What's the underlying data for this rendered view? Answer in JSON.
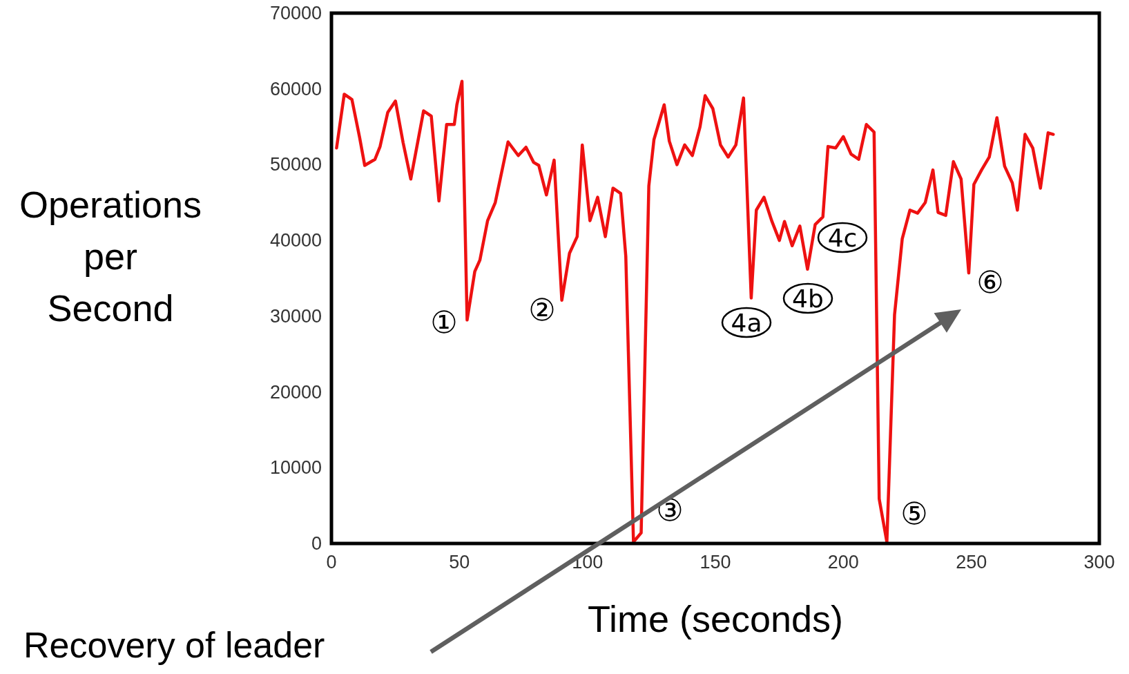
{
  "chart_data": {
    "type": "line",
    "xlabel": "Time (seconds)",
    "ylabel": "Operations per Second",
    "xlim": [
      0,
      300
    ],
    "xticks": [
      0,
      50,
      100,
      150,
      200,
      250,
      300
    ],
    "ylim": [
      0,
      70000
    ],
    "yticks": [
      0,
      10000,
      20000,
      30000,
      40000,
      50000,
      60000,
      70000
    ],
    "series": [
      {
        "color": "#ee1111",
        "x": [
          2,
          5,
          8,
          11,
          13,
          17,
          19,
          22,
          25,
          28,
          31,
          33,
          36,
          39,
          42,
          45,
          48,
          49,
          51,
          53,
          56,
          58,
          61,
          64,
          67,
          69,
          73,
          76,
          79,
          81,
          84,
          87,
          90,
          93,
          96,
          98,
          101,
          104,
          107,
          110,
          113,
          115,
          118,
          121,
          124,
          126,
          130,
          132,
          135,
          138,
          141,
          144,
          146,
          149,
          152,
          155,
          158,
          161,
          164,
          166,
          169,
          172,
          175,
          177,
          180,
          183,
          186,
          189,
          192,
          194,
          197,
          200,
          203,
          206,
          209,
          212,
          214,
          217,
          220,
          223,
          226,
          229,
          232,
          235,
          237,
          240,
          243,
          246,
          249,
          251,
          254,
          257,
          260,
          263,
          266,
          268,
          271,
          274,
          277,
          280,
          282
        ],
        "values": [
          52200,
          59300,
          58600,
          53600,
          49900,
          50700,
          52400,
          56900,
          58400,
          52900,
          48100,
          51700,
          57100,
          56400,
          45200,
          55300,
          55300,
          57900,
          61000,
          29500,
          35900,
          37400,
          42600,
          45000,
          49800,
          53000,
          51200,
          52300,
          50300,
          49900,
          46000,
          50600,
          32100,
          38300,
          40500,
          52600,
          42600,
          45700,
          40500,
          46900,
          46200,
          37900,
          200,
          1400,
          47200,
          53300,
          57900,
          53100,
          50000,
          52600,
          51200,
          55000,
          59100,
          57400,
          52600,
          51000,
          52600,
          58800,
          32400,
          44000,
          45700,
          42600,
          40000,
          42500,
          39300,
          41900,
          36200,
          42100,
          43100,
          52400,
          52200,
          53700,
          51400,
          50700,
          55300,
          54300,
          5900,
          200,
          30200,
          40200,
          44000,
          43600,
          45000,
          49300,
          43700,
          43300,
          50400,
          48100,
          35700,
          47400,
          49300,
          51000,
          56200,
          49800,
          47600,
          44000,
          54000,
          52200,
          46900,
          54200,
          54000
        ]
      }
    ],
    "annotations": [
      "①",
      "②",
      "③",
      "4a",
      "4b",
      "4c",
      "⑤",
      "⑥",
      "Recovery of leader"
    ],
    "marker": "none",
    "line_style": "solid"
  }
}
